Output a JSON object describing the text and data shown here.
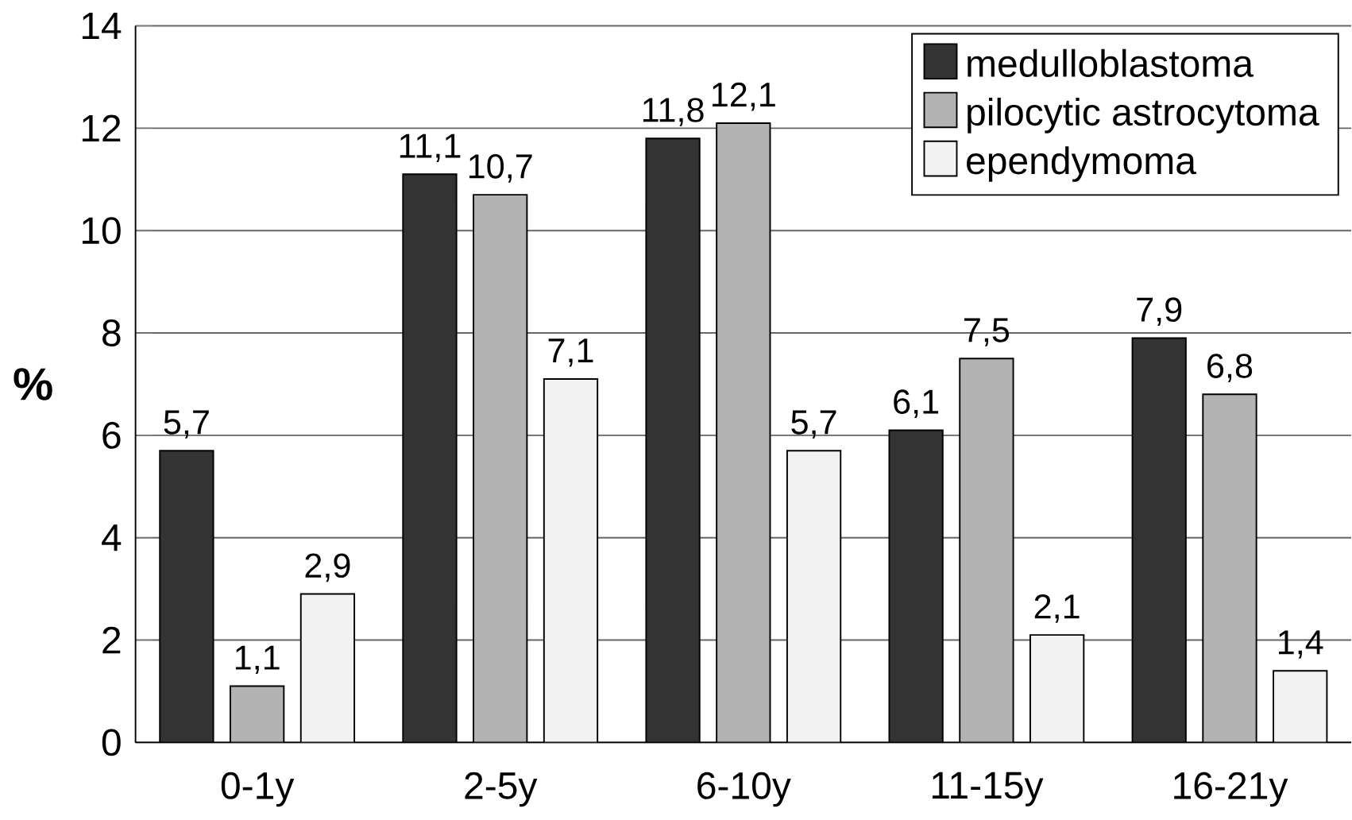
{
  "chart_data": {
    "type": "bar",
    "ylabel": "%",
    "categories": [
      "0-1y",
      "2-5y",
      "6-10y",
      "11-15y",
      "16-21y"
    ],
    "series": [
      {
        "name": "medulloblastoma",
        "color": "#333333",
        "values": [
          5.7,
          11.1,
          11.8,
          6.1,
          7.9
        ],
        "value_labels": [
          "5,7",
          "11,1",
          "11,8",
          "6,1",
          "7,9"
        ]
      },
      {
        "name": "pilocytic astrocytoma",
        "color": "#b3b3b3",
        "values": [
          1.1,
          10.7,
          12.1,
          7.5,
          6.8
        ],
        "value_labels": [
          "1,1",
          "10,7",
          "12,1",
          "7,5",
          "6,8"
        ]
      },
      {
        "name": "ependymoma",
        "color": "#f2f2f2",
        "values": [
          2.9,
          7.1,
          5.7,
          2.1,
          1.4
        ],
        "value_labels": [
          "2,9",
          "7,1",
          "5,7",
          "2,1",
          "1,4"
        ]
      }
    ],
    "ylim": [
      0,
      14
    ],
    "yticks": [
      0,
      2,
      4,
      6,
      8,
      10,
      12,
      14
    ],
    "grid": "y",
    "legend": "top right"
  }
}
